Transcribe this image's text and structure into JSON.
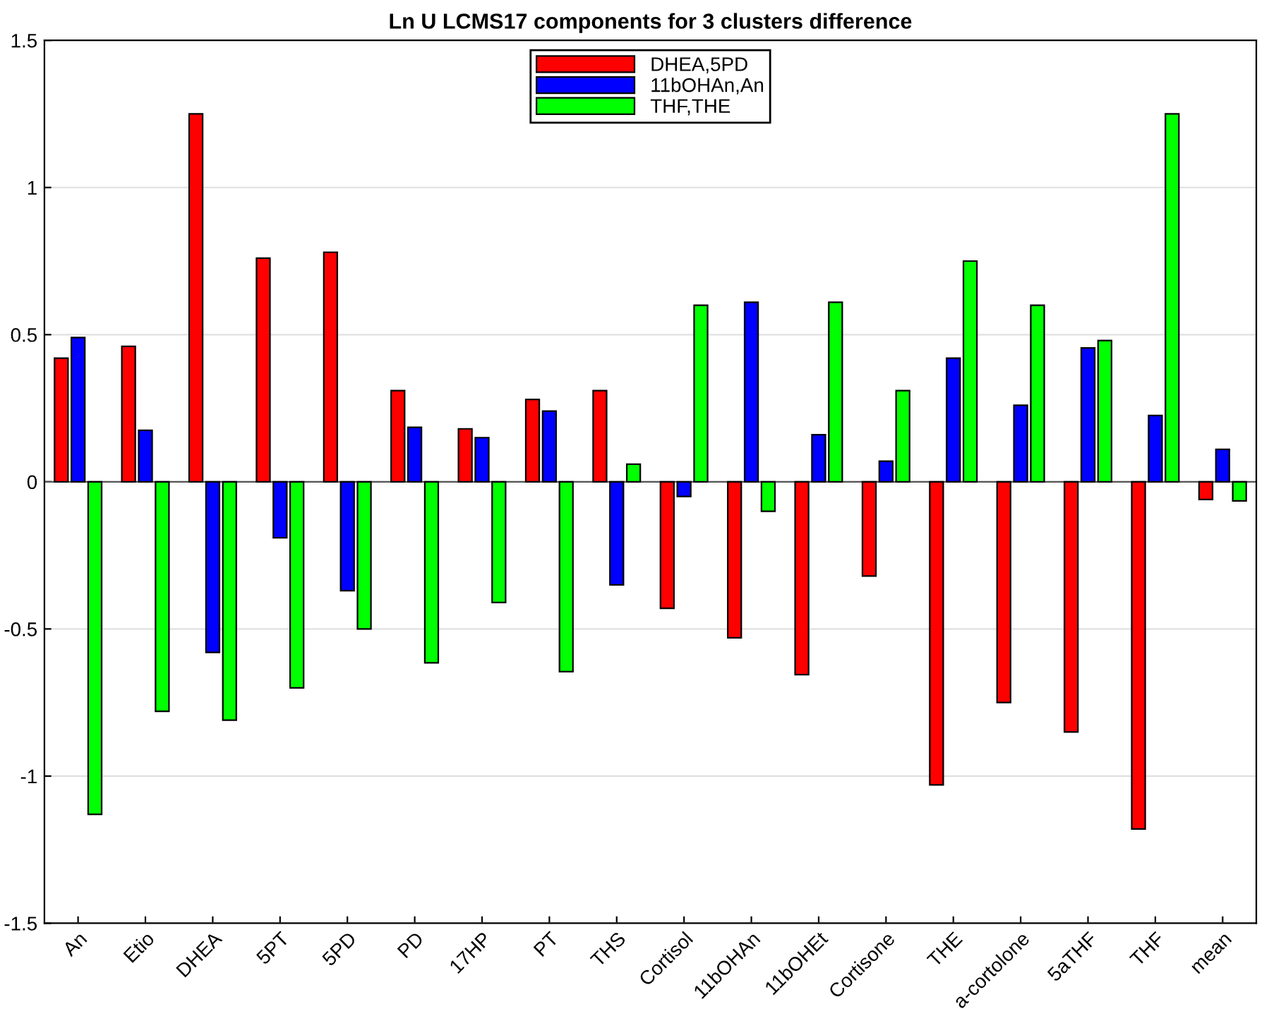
{
  "chart_data": {
    "type": "bar",
    "title": "Ln U LCMS17 components for 3 clusters difference",
    "categories": [
      "An",
      "Etio",
      "DHEA",
      "5PT",
      "5PD",
      "PD",
      "17HP",
      "PT",
      "THS",
      "Cortisol",
      "11bOHAn",
      "11bOHEt",
      "Cortisone",
      "THE",
      "a-cortolone",
      "5aTHF",
      "THF",
      "mean"
    ],
    "series": [
      {
        "name": "DHEA,5PD",
        "color": "#ff0000",
        "values": [
          0.42,
          0.46,
          1.25,
          0.76,
          0.78,
          0.31,
          0.18,
          0.28,
          0.31,
          -0.43,
          -0.53,
          -0.655,
          -0.32,
          -1.03,
          -0.75,
          -0.85,
          -1.18,
          -0.06
        ]
      },
      {
        "name": "11bOHAn,An",
        "color": "#0000ff",
        "values": [
          0.49,
          0.175,
          -0.58,
          -0.19,
          -0.37,
          0.185,
          0.15,
          0.24,
          -0.35,
          -0.05,
          0.61,
          0.16,
          0.07,
          0.42,
          0.26,
          0.455,
          0.225,
          0.11
        ]
      },
      {
        "name": "THF,THE",
        "color": "#00ff00",
        "values": [
          -1.13,
          -0.78,
          -0.81,
          -0.7,
          -0.5,
          -0.615,
          -0.41,
          -0.645,
          0.06,
          0.6,
          -0.1,
          0.61,
          0.31,
          0.75,
          0.6,
          0.48,
          1.25,
          -0.065
        ]
      }
    ],
    "ylim": [
      -1.5,
      1.5
    ],
    "yticks": [
      -1.5,
      -1,
      -0.5,
      0,
      0.5,
      1,
      1.5
    ],
    "grid": "y",
    "legend": "top"
  }
}
